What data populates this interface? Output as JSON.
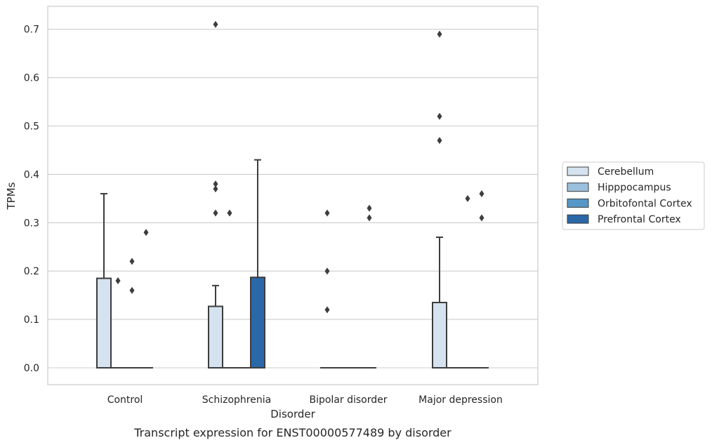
{
  "chart_data": {
    "type": "box",
    "caption": "Transcript expression for ENST00000577489 by disorder",
    "xlabel": "Disorder",
    "ylabel": "TPMs",
    "ylim": [
      -0.035,
      0.748
    ],
    "yticks": [
      0.0,
      0.1,
      0.2,
      0.3,
      0.4,
      0.5,
      0.6,
      0.7
    ],
    "ytick_labels": [
      "0.0",
      "0.1",
      "0.2",
      "0.3",
      "0.4",
      "0.5",
      "0.6",
      "0.7"
    ],
    "grid": "horizontal",
    "legend_placement": "outside right",
    "categories": [
      "Control",
      "Schizophrenia",
      "Bipolar disorder",
      "Major depression"
    ],
    "series": [
      {
        "name": "Cerebellum",
        "color": "#d5e2f0",
        "boxes": [
          {
            "q1": 0.0,
            "median": 0.0,
            "q3": 0.185,
            "whisker_low": 0.0,
            "whisker_high": 0.36,
            "outliers": []
          },
          {
            "q1": 0.0,
            "median": 0.0,
            "q3": 0.127,
            "whisker_low": 0.0,
            "whisker_high": 0.17,
            "outliers": [
              0.32,
              0.37,
              0.38,
              0.71
            ]
          },
          {
            "q1": 0.0,
            "median": 0.0,
            "q3": 0.0,
            "whisker_low": 0.0,
            "whisker_high": 0.0,
            "outliers": [
              0.12,
              0.2,
              0.32
            ]
          },
          {
            "q1": 0.0,
            "median": 0.0,
            "q3": 0.135,
            "whisker_low": 0.0,
            "whisker_high": 0.27,
            "outliers": [
              0.47,
              0.52,
              0.69
            ]
          }
        ]
      },
      {
        "name": "Hipppocampus",
        "color": "#9ac0dc",
        "boxes": [
          {
            "q1": 0.0,
            "median": 0.0,
            "q3": 0.0,
            "whisker_low": 0.0,
            "whisker_high": 0.0,
            "outliers": [
              0.18
            ]
          },
          {
            "q1": 0.0,
            "median": 0.0,
            "q3": 0.0,
            "whisker_low": 0.0,
            "whisker_high": 0.0,
            "outliers": [
              0.32
            ]
          },
          {
            "q1": 0.0,
            "median": 0.0,
            "q3": 0.0,
            "whisker_low": 0.0,
            "whisker_high": 0.0,
            "outliers": []
          },
          {
            "q1": 0.0,
            "median": 0.0,
            "q3": 0.0,
            "whisker_low": 0.0,
            "whisker_high": 0.0,
            "outliers": []
          }
        ]
      },
      {
        "name": "Orbitofontal Cortex",
        "color": "#5597c6",
        "boxes": [
          {
            "q1": 0.0,
            "median": 0.0,
            "q3": 0.0,
            "whisker_low": 0.0,
            "whisker_high": 0.0,
            "outliers": [
              0.16,
              0.22
            ]
          },
          {
            "q1": 0.0,
            "median": 0.0,
            "q3": 0.0,
            "whisker_low": 0.0,
            "whisker_high": 0.0,
            "outliers": []
          },
          {
            "q1": 0.0,
            "median": 0.0,
            "q3": 0.0,
            "whisker_low": 0.0,
            "whisker_high": 0.0,
            "outliers": []
          },
          {
            "q1": 0.0,
            "median": 0.0,
            "q3": 0.0,
            "whisker_low": 0.0,
            "whisker_high": 0.0,
            "outliers": [
              0.35
            ]
          }
        ]
      },
      {
        "name": "Prefrontal Cortex",
        "color": "#2a68a8",
        "boxes": [
          {
            "q1": 0.0,
            "median": 0.0,
            "q3": 0.0,
            "whisker_low": 0.0,
            "whisker_high": 0.0,
            "outliers": [
              0.28
            ]
          },
          {
            "q1": 0.0,
            "median": 0.0,
            "q3": 0.187,
            "whisker_low": 0.0,
            "whisker_high": 0.43,
            "outliers": []
          },
          {
            "q1": 0.0,
            "median": 0.0,
            "q3": 0.0,
            "whisker_low": 0.0,
            "whisker_high": 0.0,
            "outliers": [
              0.31,
              0.33
            ]
          },
          {
            "q1": 0.0,
            "median": 0.0,
            "q3": 0.0,
            "whisker_low": 0.0,
            "whisker_high": 0.0,
            "outliers": [
              0.31,
              0.36
            ]
          }
        ]
      }
    ]
  }
}
